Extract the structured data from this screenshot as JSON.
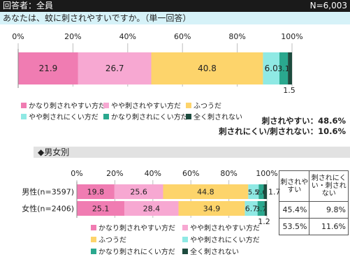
{
  "header": {
    "respondents_label": "回答者：全員",
    "n_label": "N=6,003"
  },
  "question": {
    "text": "あなたは、蚊に刺されやすいですか。（単一回答）"
  },
  "summary": {
    "line1": "刺されやすい：48.6%",
    "line2": "刺されにくい/刺されない：10.6%"
  },
  "section": {
    "label": "◆男女別"
  },
  "side_table": {
    "headers": [
      "刺されやすい",
      "刺されにくい・刺されない"
    ],
    "rows": [
      [
        "45.4%",
        "9.8%"
      ],
      [
        "53.5%",
        "11.6%"
      ]
    ]
  },
  "colors": {
    "very_easy": "#f07cb2",
    "somewhat_easy": "#f7a8d2",
    "neutral": "#fdd46b",
    "somewhat_hard": "#8fe9e4",
    "hard": "#2aa88e",
    "never": "#1d4b3e"
  },
  "chart_data": [
    {
      "type": "bar",
      "orientation": "horizontal-stacked",
      "x_ticks": [
        "0%",
        "20%",
        "40%",
        "60%",
        "80%",
        "100%"
      ],
      "xlim": [
        0,
        100
      ],
      "categories": [
        ""
      ],
      "series": [
        {
          "name": "かなり刺されやすい方だ",
          "values": [
            21.9
          ],
          "labels": [
            "21.9"
          ]
        },
        {
          "name": "やや刺されやすい方だ",
          "values": [
            26.7
          ],
          "labels": [
            "26.7"
          ]
        },
        {
          "name": "ふつうだ",
          "values": [
            40.8
          ],
          "labels": [
            "40.8"
          ]
        },
        {
          "name": "やや刺されにくい方だ",
          "values": [
            6.0
          ],
          "labels": [
            "6.0"
          ]
        },
        {
          "name": "かなり刺されにくい方だ",
          "values": [
            3.1
          ],
          "labels": [
            "3.1"
          ]
        },
        {
          "name": "全く刺されない",
          "values": [
            1.5
          ],
          "labels": [
            "1.5"
          ]
        }
      ],
      "legend": "bottom"
    },
    {
      "type": "bar",
      "orientation": "horizontal-stacked",
      "x_ticks": [
        "0%",
        "20%",
        "40%",
        "60%",
        "80%",
        "100%"
      ],
      "xlim": [
        0,
        100
      ],
      "categories": [
        "男性(n=3597)",
        "女性(n=2406)"
      ],
      "series": [
        {
          "name": "かなり刺されやすい方だ",
          "values": [
            19.8,
            25.1
          ],
          "labels": [
            "19.8",
            "25.1"
          ]
        },
        {
          "name": "やや刺されやすい方だ",
          "values": [
            25.6,
            28.4
          ],
          "labels": [
            "25.6",
            "28.4"
          ]
        },
        {
          "name": "ふつうだ",
          "values": [
            44.8,
            34.9
          ],
          "labels": [
            "44.8",
            "34.9"
          ]
        },
        {
          "name": "やや刺されにくい方だ",
          "values": [
            5.5,
            6.7
          ],
          "labels": [
            "5.5",
            "6.7"
          ]
        },
        {
          "name": "かなり刺されにくい方だ",
          "values": [
            2.6,
            3.7
          ],
          "labels": [
            "2.6",
            "3.7"
          ]
        },
        {
          "name": "全く刺されない",
          "values": [
            1.7,
            1.2
          ],
          "labels": [
            "1.7",
            "1.2"
          ]
        }
      ],
      "legend": "bottom"
    }
  ]
}
